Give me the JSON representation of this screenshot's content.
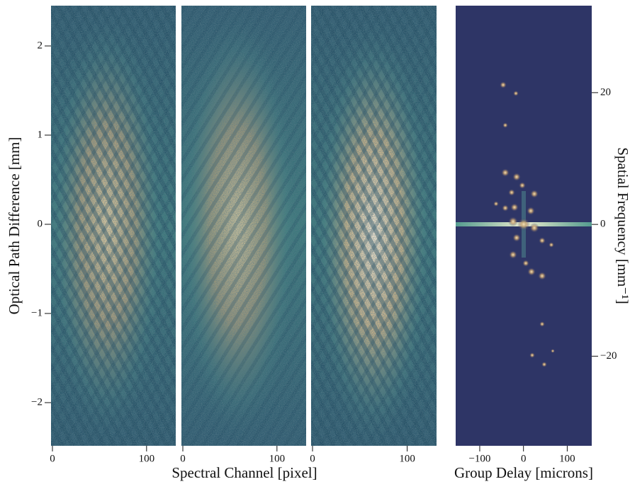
{
  "chart_data": [
    {
      "type": "image",
      "panels": 3,
      "xlabel": "Spectral Channel [pixel]",
      "ylabel": "Optical Path Difference [mm]",
      "xlim": [
        -1.5,
        131
      ],
      "xticks": [
        0,
        100
      ],
      "ylim": [
        -2.484,
        2.452
      ],
      "yticks": [
        {
          "value": -2,
          "label": "−2"
        },
        {
          "value": -1,
          "label": "−1"
        },
        0,
        1,
        2
      ],
      "yaxis": "left"
    },
    {
      "type": "image",
      "panels": 1,
      "xlabel": "Group Delay [microns]",
      "ylabel": "Spatial Frequency [mm⁻¹]",
      "xlim": [
        -155,
        156
      ],
      "xticks": [
        {
          "value": -100,
          "label": "−100"
        },
        0,
        100
      ],
      "ylim": [
        -33.6,
        33.2
      ],
      "yticks": [
        {
          "value": -20,
          "label": "−20"
        },
        0,
        20
      ],
      "yaxis": "right"
    }
  ]
}
